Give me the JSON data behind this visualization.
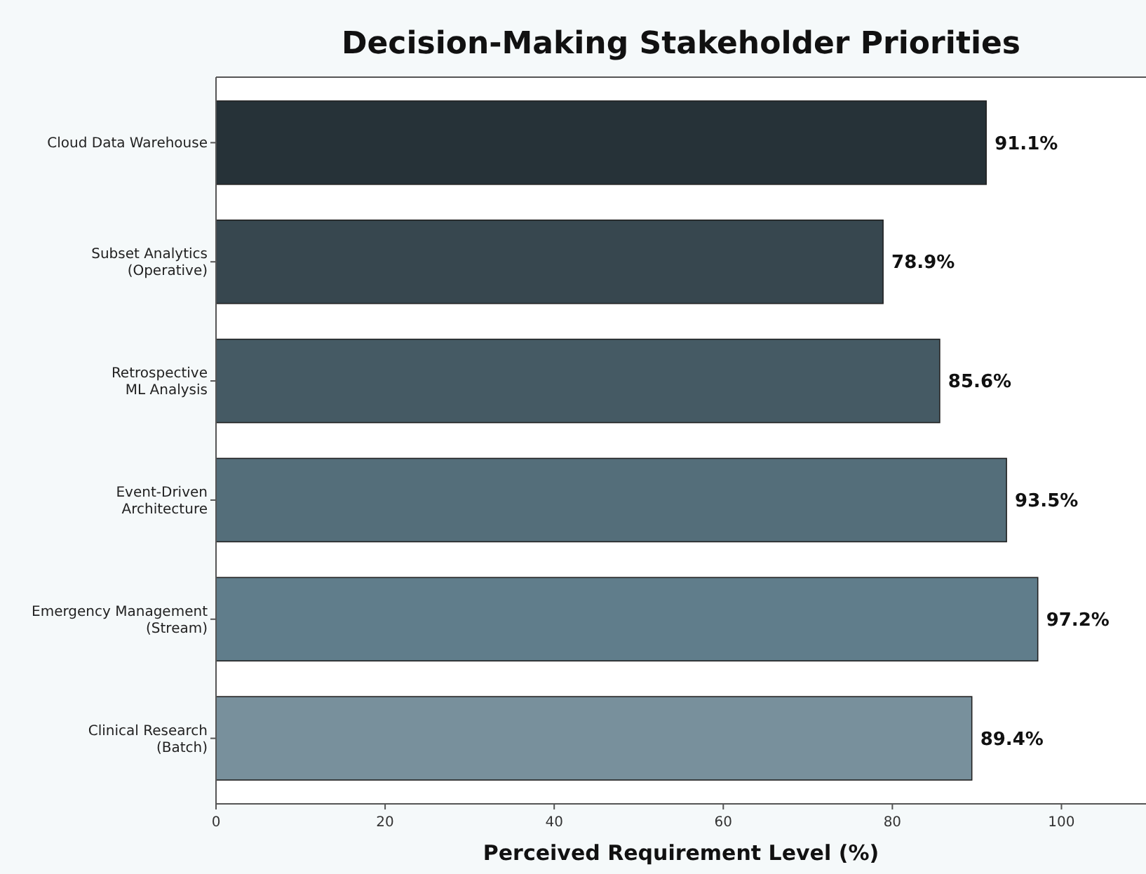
{
  "chart_data": {
    "type": "bar",
    "orientation": "horizontal",
    "title": "Decision-Making Stakeholder Priorities",
    "xlabel": "Perceived Requirement Level (%)",
    "categories": [
      "Cloud Data Warehouse",
      "Subset Analytics\n(Operative)",
      "Retrospective\nML Analysis",
      "Event-Driven\nArchitecture",
      "Emergency Management\n(Stream)",
      "Clinical Research\n(Batch)"
    ],
    "values": [
      91.1,
      78.9,
      85.6,
      93.5,
      97.2,
      89.4
    ],
    "colors": [
      "#263238",
      "#37474f",
      "#455a64",
      "#546e7a",
      "#607d8b",
      "#78909c"
    ],
    "value_labels": [
      "91.1%",
      "78.9%",
      "85.6%",
      "93.5%",
      "97.2%",
      "89.4%"
    ],
    "xlim": [
      0,
      110
    ],
    "xticks": [
      0,
      20,
      40,
      60,
      80,
      100
    ]
  }
}
